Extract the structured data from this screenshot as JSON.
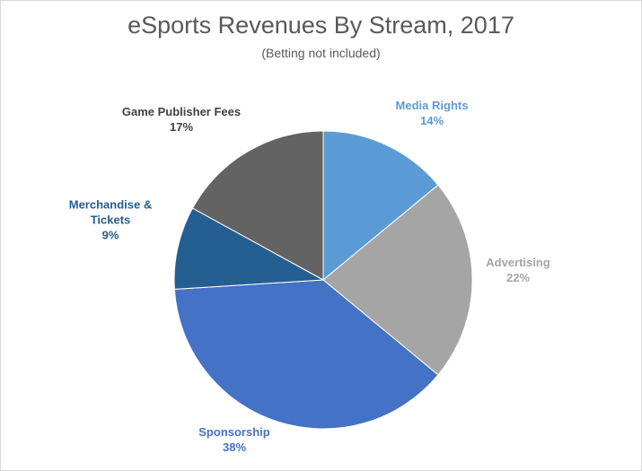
{
  "chart_data": {
    "type": "pie",
    "title": "eSports Revenues By Stream, 2017",
    "subtitle": "(Betting not included)",
    "slices": [
      {
        "label_lines": [
          "Media Rights"
        ],
        "pct_label": "14%",
        "value": 14,
        "color": "#5b9bd5",
        "label_color": "#5b9bd5"
      },
      {
        "label_lines": [
          "Advertising"
        ],
        "pct_label": "22%",
        "value": 22,
        "color": "#a5a5a5",
        "label_color": "#a5a5a5"
      },
      {
        "label_lines": [
          "Sponsorship"
        ],
        "pct_label": "38%",
        "value": 38,
        "color": "#4472c4",
        "label_color": "#4472c4"
      },
      {
        "label_lines": [
          "Merchandise &",
          "Tickets"
        ],
        "pct_label": "9%",
        "value": 9,
        "color": "#255e91",
        "label_color": "#255e91"
      },
      {
        "label_lines": [
          "Game Publisher Fees"
        ],
        "pct_label": "17%",
        "value": 17,
        "color": "#636363",
        "label_color": "#404040"
      }
    ],
    "start_angle": "12 o'clock",
    "direction": "clockwise",
    "legend": "none",
    "data_labels": "outside-end"
  }
}
